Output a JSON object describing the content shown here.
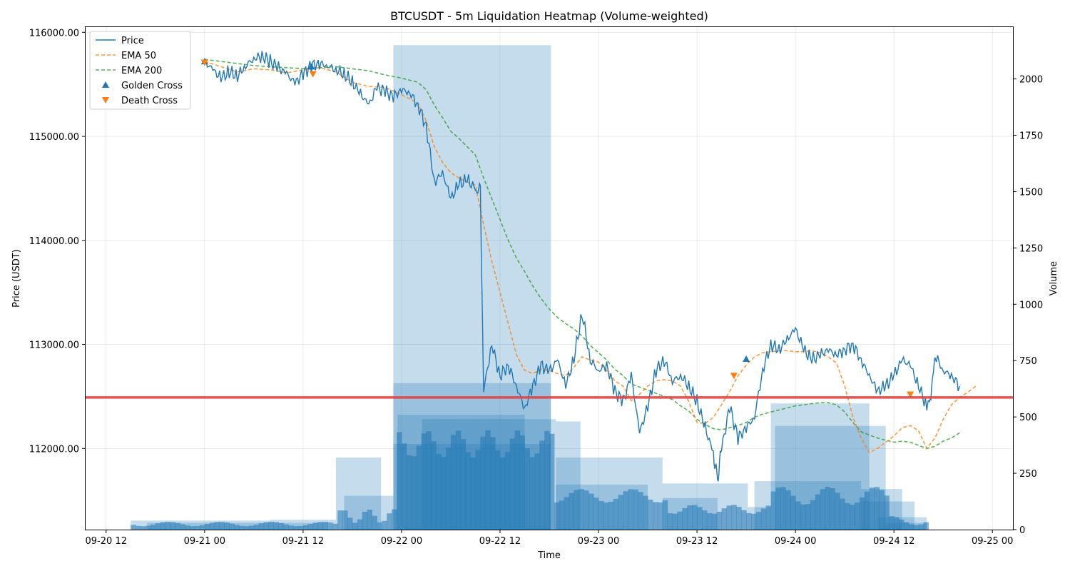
{
  "chart_data": {
    "type": "line",
    "title": "BTCUSDT - 5m Liquidation Heatmap (Volume-weighted)",
    "xlabel": "Time",
    "ylabel": "Price (USDT)",
    "y2label": "Volume",
    "x_ticks": [
      "09-20 12",
      "09-21 00",
      "09-21 12",
      "09-22 00",
      "09-22 12",
      "09-23 00",
      "09-23 12",
      "09-24 00",
      "09-24 12",
      "09-25 00"
    ],
    "y_ticks": [
      "112000.00",
      "113000.00",
      "114000.00",
      "115000.00",
      "116000.00"
    ],
    "y2_ticks": [
      "0",
      "250",
      "500",
      "750",
      "1000",
      "1250",
      "1500",
      "1750",
      "2000"
    ],
    "xlim_hours": [
      -14.5,
      98.5
    ],
    "ylim": [
      111220,
      116050
    ],
    "y2lim": [
      0,
      2230
    ],
    "grid": true,
    "legend_position": "top-left",
    "legend": [
      "Price",
      "EMA 50",
      "EMA 200",
      "Golden Cross",
      "Death Cross"
    ],
    "colors": {
      "price": "#1f77b4",
      "ema50": "#ff7f0e",
      "ema200": "#2ca02c",
      "golden": "#1f77b4",
      "death": "#ff7f0e",
      "liq_line": "#e8403f",
      "volume": "#1f77b4"
    },
    "liquidation_level": 112490,
    "price": [
      [
        0,
        115720
      ],
      [
        1,
        115640
      ],
      [
        2,
        115560
      ],
      [
        3,
        115620
      ],
      [
        4,
        115580
      ],
      [
        5,
        115680
      ],
      [
        6,
        115750
      ],
      [
        7,
        115770
      ],
      [
        8,
        115720
      ],
      [
        9,
        115660
      ],
      [
        10,
        115600
      ],
      [
        11,
        115510
      ],
      [
        12,
        115600
      ],
      [
        13,
        115680
      ],
      [
        14,
        115700
      ],
      [
        15,
        115680
      ],
      [
        16,
        115640
      ],
      [
        17,
        115600
      ],
      [
        18,
        115520
      ],
      [
        19,
        115410
      ],
      [
        20,
        115300
      ],
      [
        21,
        115470
      ],
      [
        22,
        115430
      ],
      [
        23,
        115380
      ],
      [
        24,
        115450
      ],
      [
        25,
        115420
      ],
      [
        26,
        115300
      ],
      [
        27,
        115100
      ],
      [
        28,
        114560
      ],
      [
        29,
        114650
      ],
      [
        30,
        114400
      ],
      [
        31,
        114540
      ],
      [
        32,
        114580
      ],
      [
        33,
        114500
      ],
      [
        33.6,
        114480
      ],
      [
        34,
        112560
      ],
      [
        35,
        113000
      ],
      [
        36,
        112700
      ],
      [
        37,
        112800
      ],
      [
        38,
        112600
      ],
      [
        39,
        112380
      ],
      [
        40,
        112600
      ],
      [
        41,
        112800
      ],
      [
        42,
        112740
      ],
      [
        43,
        112850
      ],
      [
        44,
        112600
      ],
      [
        45,
        112860
      ],
      [
        46,
        113300
      ],
      [
        47,
        112850
      ],
      [
        48,
        112750
      ],
      [
        49,
        112800
      ],
      [
        50,
        112550
      ],
      [
        51,
        112450
      ],
      [
        52,
        112700
      ],
      [
        53,
        112150
      ],
      [
        54,
        112400
      ],
      [
        55,
        112750
      ],
      [
        56,
        112850
      ],
      [
        57,
        112650
      ],
      [
        58,
        112700
      ],
      [
        59,
        112600
      ],
      [
        60,
        112450
      ],
      [
        61,
        112200
      ],
      [
        62,
        111950
      ],
      [
        62.5,
        111700
      ],
      [
        63,
        112000
      ],
      [
        64,
        112400
      ],
      [
        65,
        112100
      ],
      [
        66,
        112200
      ],
      [
        67,
        112300
      ],
      [
        68,
        112750
      ],
      [
        69,
        113000
      ],
      [
        70,
        112950
      ],
      [
        71,
        113050
      ],
      [
        72,
        113150
      ],
      [
        73,
        112950
      ],
      [
        74,
        112850
      ],
      [
        75,
        112900
      ],
      [
        76,
        112950
      ],
      [
        77,
        112900
      ],
      [
        78,
        112950
      ],
      [
        79,
        113000
      ],
      [
        80,
        112850
      ],
      [
        81,
        112700
      ],
      [
        82,
        112550
      ],
      [
        83,
        112600
      ],
      [
        84,
        112700
      ],
      [
        85,
        112850
      ],
      [
        86,
        112800
      ],
      [
        87,
        112600
      ],
      [
        88,
        112400
      ],
      [
        88.5,
        112500
      ],
      [
        89,
        112900
      ],
      [
        90,
        112750
      ],
      [
        91,
        112700
      ],
      [
        92,
        112600
      ]
    ],
    "price_more": [
      [
        69.5,
        113050
      ],
      [
        70.5,
        113260
      ],
      [
        71.5,
        113050
      ],
      [
        72.5,
        112900
      ],
      [
        73.5,
        112950
      ],
      [
        74.5,
        113000
      ],
      [
        75.5,
        112850
      ],
      [
        76.5,
        113020
      ]
    ],
    "ema50": [
      [
        0,
        115720
      ],
      [
        2,
        115670
      ],
      [
        4,
        115620
      ],
      [
        6,
        115650
      ],
      [
        8,
        115640
      ],
      [
        10,
        115610
      ],
      [
        12,
        115640
      ],
      [
        14,
        115660
      ],
      [
        16,
        115620
      ],
      [
        18,
        115520
      ],
      [
        20,
        115480
      ],
      [
        22,
        115470
      ],
      [
        24,
        115400
      ],
      [
        26,
        115320
      ],
      [
        27,
        115150
      ],
      [
        28,
        114900
      ],
      [
        29,
        114750
      ],
      [
        30,
        114650
      ],
      [
        31,
        114600
      ],
      [
        32,
        114560
      ],
      [
        33,
        114530
      ],
      [
        34,
        114150
      ],
      [
        35,
        113800
      ],
      [
        36,
        113500
      ],
      [
        37,
        113200
      ],
      [
        38,
        112900
      ],
      [
        39,
        112750
      ],
      [
        40,
        112720
      ],
      [
        41,
        112760
      ],
      [
        42,
        112750
      ],
      [
        43,
        112720
      ],
      [
        44,
        112700
      ],
      [
        45,
        112780
      ],
      [
        46,
        112880
      ],
      [
        47,
        112850
      ],
      [
        48,
        112830
      ],
      [
        49,
        112750
      ],
      [
        50,
        112650
      ],
      [
        51,
        112600
      ],
      [
        52,
        112460
      ],
      [
        53,
        112520
      ],
      [
        54,
        112600
      ],
      [
        55,
        112650
      ],
      [
        56,
        112660
      ],
      [
        57,
        112650
      ],
      [
        58,
        112600
      ],
      [
        59,
        112450
      ],
      [
        60,
        112250
      ],
      [
        61,
        112240
      ],
      [
        62,
        112300
      ],
      [
        63,
        112420
      ],
      [
        64,
        112550
      ],
      [
        65,
        112700
      ],
      [
        66,
        112800
      ],
      [
        67,
        112880
      ],
      [
        68,
        112920
      ],
      [
        69,
        112930
      ],
      [
        70,
        112940
      ],
      [
        71,
        112940
      ],
      [
        72,
        112930
      ],
      [
        73,
        112930
      ],
      [
        74,
        112940
      ],
      [
        75,
        112920
      ],
      [
        76,
        112880
      ],
      [
        77,
        112820
      ],
      [
        78,
        112600
      ],
      [
        79,
        112300
      ],
      [
        80,
        112100
      ],
      [
        81,
        111960
      ],
      [
        82,
        112000
      ],
      [
        83,
        112060
      ],
      [
        84,
        112120
      ],
      [
        85,
        112200
      ],
      [
        86,
        112220
      ],
      [
        87,
        112170
      ],
      [
        88,
        112000
      ],
      [
        89,
        112100
      ],
      [
        90,
        112280
      ],
      [
        91,
        112420
      ],
      [
        92,
        112490
      ],
      [
        93,
        112540
      ],
      [
        94,
        112600
      ]
    ],
    "ema200": [
      [
        0,
        115740
      ],
      [
        2,
        115720
      ],
      [
        4,
        115700
      ],
      [
        6,
        115680
      ],
      [
        8,
        115670
      ],
      [
        10,
        115660
      ],
      [
        12,
        115650
      ],
      [
        14,
        115660
      ],
      [
        16,
        115670
      ],
      [
        18,
        115650
      ],
      [
        20,
        115630
      ],
      [
        22,
        115590
      ],
      [
        24,
        115560
      ],
      [
        26,
        115520
      ],
      [
        27,
        115450
      ],
      [
        28,
        115300
      ],
      [
        29,
        115180
      ],
      [
        30,
        115050
      ],
      [
        31,
        114980
      ],
      [
        32,
        114900
      ],
      [
        33,
        114820
      ],
      [
        34,
        114600
      ],
      [
        35,
        114400
      ],
      [
        36,
        114200
      ],
      [
        37,
        114000
      ],
      [
        38,
        113830
      ],
      [
        39,
        113700
      ],
      [
        40,
        113560
      ],
      [
        41,
        113440
      ],
      [
        42,
        113340
      ],
      [
        43,
        113260
      ],
      [
        44,
        113200
      ],
      [
        45,
        113150
      ],
      [
        46,
        113080
      ],
      [
        47,
        112990
      ],
      [
        48,
        112920
      ],
      [
        49,
        112850
      ],
      [
        50,
        112760
      ],
      [
        51,
        112700
      ],
      [
        52,
        112620
      ],
      [
        53,
        112590
      ],
      [
        54,
        112560
      ],
      [
        55,
        112530
      ],
      [
        56,
        112500
      ],
      [
        57,
        112470
      ],
      [
        58,
        112410
      ],
      [
        59,
        112360
      ],
      [
        60,
        112280
      ],
      [
        61,
        112230
      ],
      [
        62,
        112190
      ],
      [
        63,
        112180
      ],
      [
        64,
        112200
      ],
      [
        65,
        112220
      ],
      [
        66,
        112250
      ],
      [
        67,
        112300
      ],
      [
        68,
        112330
      ],
      [
        69,
        112350
      ],
      [
        70,
        112370
      ],
      [
        71,
        112390
      ],
      [
        72,
        112410
      ],
      [
        73,
        112420
      ],
      [
        74,
        112430
      ],
      [
        75,
        112440
      ],
      [
        76,
        112440
      ],
      [
        77,
        112420
      ],
      [
        78,
        112350
      ],
      [
        79,
        112250
      ],
      [
        80,
        112160
      ],
      [
        81,
        112130
      ],
      [
        82,
        112100
      ],
      [
        83,
        112080
      ],
      [
        84,
        112060
      ],
      [
        85,
        112070
      ],
      [
        86,
        112060
      ],
      [
        87,
        112030
      ],
      [
        88,
        112000
      ],
      [
        89,
        112020
      ],
      [
        90,
        112070
      ],
      [
        91,
        112100
      ],
      [
        92,
        112150
      ]
    ],
    "golden_cross": [
      [
        0,
        115720
      ],
      [
        13,
        115670
      ],
      [
        66,
        112860
      ]
    ],
    "death_cross": [
      [
        0,
        115710
      ],
      [
        13.2,
        115600
      ],
      [
        64.5,
        112700
      ],
      [
        86,
        112520
      ]
    ],
    "volume_bands": [
      {
        "x0": -9,
        "x1": 8,
        "v": 40
      },
      {
        "x0": -7,
        "x1": 15,
        "v": 30
      },
      {
        "x0": 8,
        "x1": 16,
        "v": 44
      },
      {
        "x0": 16,
        "x1": 21.5,
        "v": 320
      },
      {
        "x0": 17,
        "x1": 23,
        "v": 150
      },
      {
        "x0": 23,
        "x1": 42.2,
        "v": 2150
      },
      {
        "x0": 23,
        "x1": 42.2,
        "v": 650
      },
      {
        "x0": 23.5,
        "x1": 39,
        "v": 510
      },
      {
        "x0": 26.5,
        "x1": 42.8,
        "v": 490
      },
      {
        "x0": 23,
        "x1": 42.2,
        "v": 380
      },
      {
        "x0": 42.8,
        "x1": 45.8,
        "v": 480
      },
      {
        "x0": 42.8,
        "x1": 55.8,
        "v": 320
      },
      {
        "x0": 42.8,
        "x1": 54,
        "v": 200
      },
      {
        "x0": 55.8,
        "x1": 66.2,
        "v": 205
      },
      {
        "x0": 55.8,
        "x1": 62.5,
        "v": 140
      },
      {
        "x0": 66.2,
        "x1": 69,
        "v": 100
      },
      {
        "x0": 69,
        "x1": 81,
        "v": 560
      },
      {
        "x0": 67,
        "x1": 80,
        "v": 215
      },
      {
        "x0": 69.5,
        "x1": 83,
        "v": 460
      },
      {
        "x0": 80,
        "x1": 85,
        "v": 180
      },
      {
        "x0": 80,
        "x1": 86.5,
        "v": 125
      },
      {
        "x0": 82,
        "x1": 88,
        "v": 55
      },
      {
        "x0": 83,
        "x1": 88,
        "v": 30
      }
    ]
  }
}
